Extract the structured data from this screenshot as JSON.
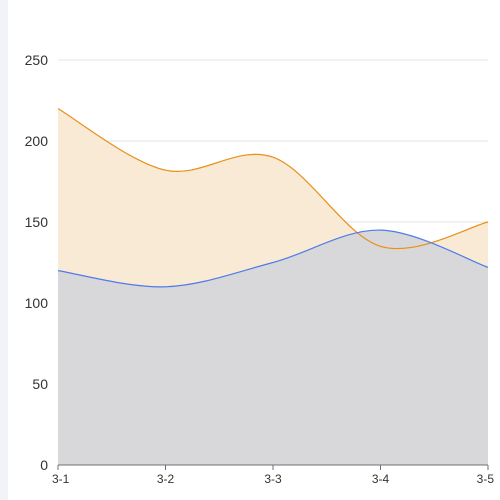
{
  "chart_data": {
    "type": "area",
    "categories": [
      "3-1",
      "3-2",
      "3-3",
      "3-4",
      "3-5"
    ],
    "series": [
      {
        "values": [
          220,
          182,
          190,
          135,
          150
        ],
        "color": "#e8901a",
        "fill": "#f9ead6"
      },
      {
        "values": [
          120,
          110,
          125,
          145,
          122
        ],
        "color": "#4e7bea",
        "fill": "#d8d7da"
      }
    ],
    "yticks": [
      "0",
      "50",
      "100",
      "150",
      "200",
      "250"
    ],
    "ylim": [
      0,
      250
    ],
    "grid": true,
    "smooth": true
  }
}
